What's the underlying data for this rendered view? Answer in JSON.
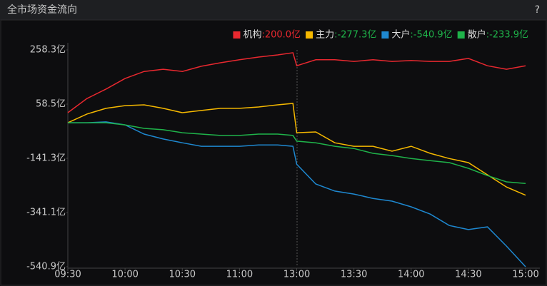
{
  "header": {
    "title": "全市场资金流向",
    "help": "?"
  },
  "chart_data": {
    "type": "line",
    "x": [
      0,
      10,
      20,
      30,
      40,
      50,
      60,
      70,
      80,
      90,
      100,
      110,
      118,
      120,
      130,
      140,
      150,
      160,
      170,
      180,
      190,
      200,
      210,
      220,
      230,
      240
    ],
    "xlim": [
      0,
      240
    ],
    "xticks": [
      {
        "value": 0,
        "label": "09:30"
      },
      {
        "value": 30,
        "label": "10:00"
      },
      {
        "value": 60,
        "label": "10:30"
      },
      {
        "value": 90,
        "label": "11:00"
      },
      {
        "value": 120,
        "label": "13:00"
      },
      {
        "value": 150,
        "label": "13:30"
      },
      {
        "value": 180,
        "label": "14:00"
      },
      {
        "value": 210,
        "label": "14:30"
      },
      {
        "value": 240,
        "label": "15:00"
      }
    ],
    "ylim": [
      -540.9,
      258.3
    ],
    "yticks": [
      {
        "value": 258.3,
        "label": "258.3亿"
      },
      {
        "value": 58.5,
        "label": "58.5亿"
      },
      {
        "value": -141.3,
        "label": "-141.3亿"
      },
      {
        "value": -341.1,
        "label": "-341.1亿"
      },
      {
        "value": -540.9,
        "label": "-540.9亿"
      }
    ],
    "series": [
      {
        "name": "机构",
        "color": "#e8282f",
        "total": {
          "value": 200.0,
          "label": ":200.0亿"
        },
        "total_color": "#e8282f",
        "values": [
          27,
          79,
          114,
          153,
          179,
          187,
          179,
          198,
          211,
          222,
          232,
          240,
          248,
          200,
          222,
          222,
          216,
          222,
          216,
          219,
          216,
          216,
          227,
          200,
          187,
          200
        ]
      },
      {
        "name": "主力",
        "color": "#f5b800",
        "total": {
          "value": -277.3,
          "label": ":-277.3亿"
        },
        "total_color": "#1fb34a",
        "values": [
          -10,
          22,
          43,
          53,
          56,
          43,
          27,
          35,
          43,
          43,
          48,
          56,
          61,
          -47,
          -44,
          -84,
          -97,
          -97,
          -115,
          -97,
          -123,
          -142,
          -157,
          -202,
          -247,
          -277.3
        ]
      },
      {
        "name": "大户",
        "color": "#1e88d0",
        "total": {
          "value": -540.9,
          "label": ":-540.9亿"
        },
        "total_color": "#1fb34a",
        "values": [
          -10,
          -10,
          -7,
          -18,
          -52,
          -70,
          -84,
          -97,
          -97,
          -97,
          -92,
          -92,
          -97,
          -163,
          -236,
          -262,
          -273,
          -289,
          -299,
          -320,
          -347,
          -389,
          -404,
          -394,
          -465,
          -540.9
        ]
      },
      {
        "name": "散户",
        "color": "#1fb34a",
        "total": {
          "value": -233.9,
          "label": ":-233.9亿"
        },
        "total_color": "#1fb34a",
        "values": [
          -10,
          -10,
          -10,
          -18,
          -31,
          -36,
          -47,
          -52,
          -57,
          -57,
          -52,
          -52,
          -57,
          -78,
          -84,
          -97,
          -105,
          -123,
          -131,
          -142,
          -150,
          -157,
          -178,
          -205,
          -228,
          -233.9
        ]
      }
    ]
  }
}
